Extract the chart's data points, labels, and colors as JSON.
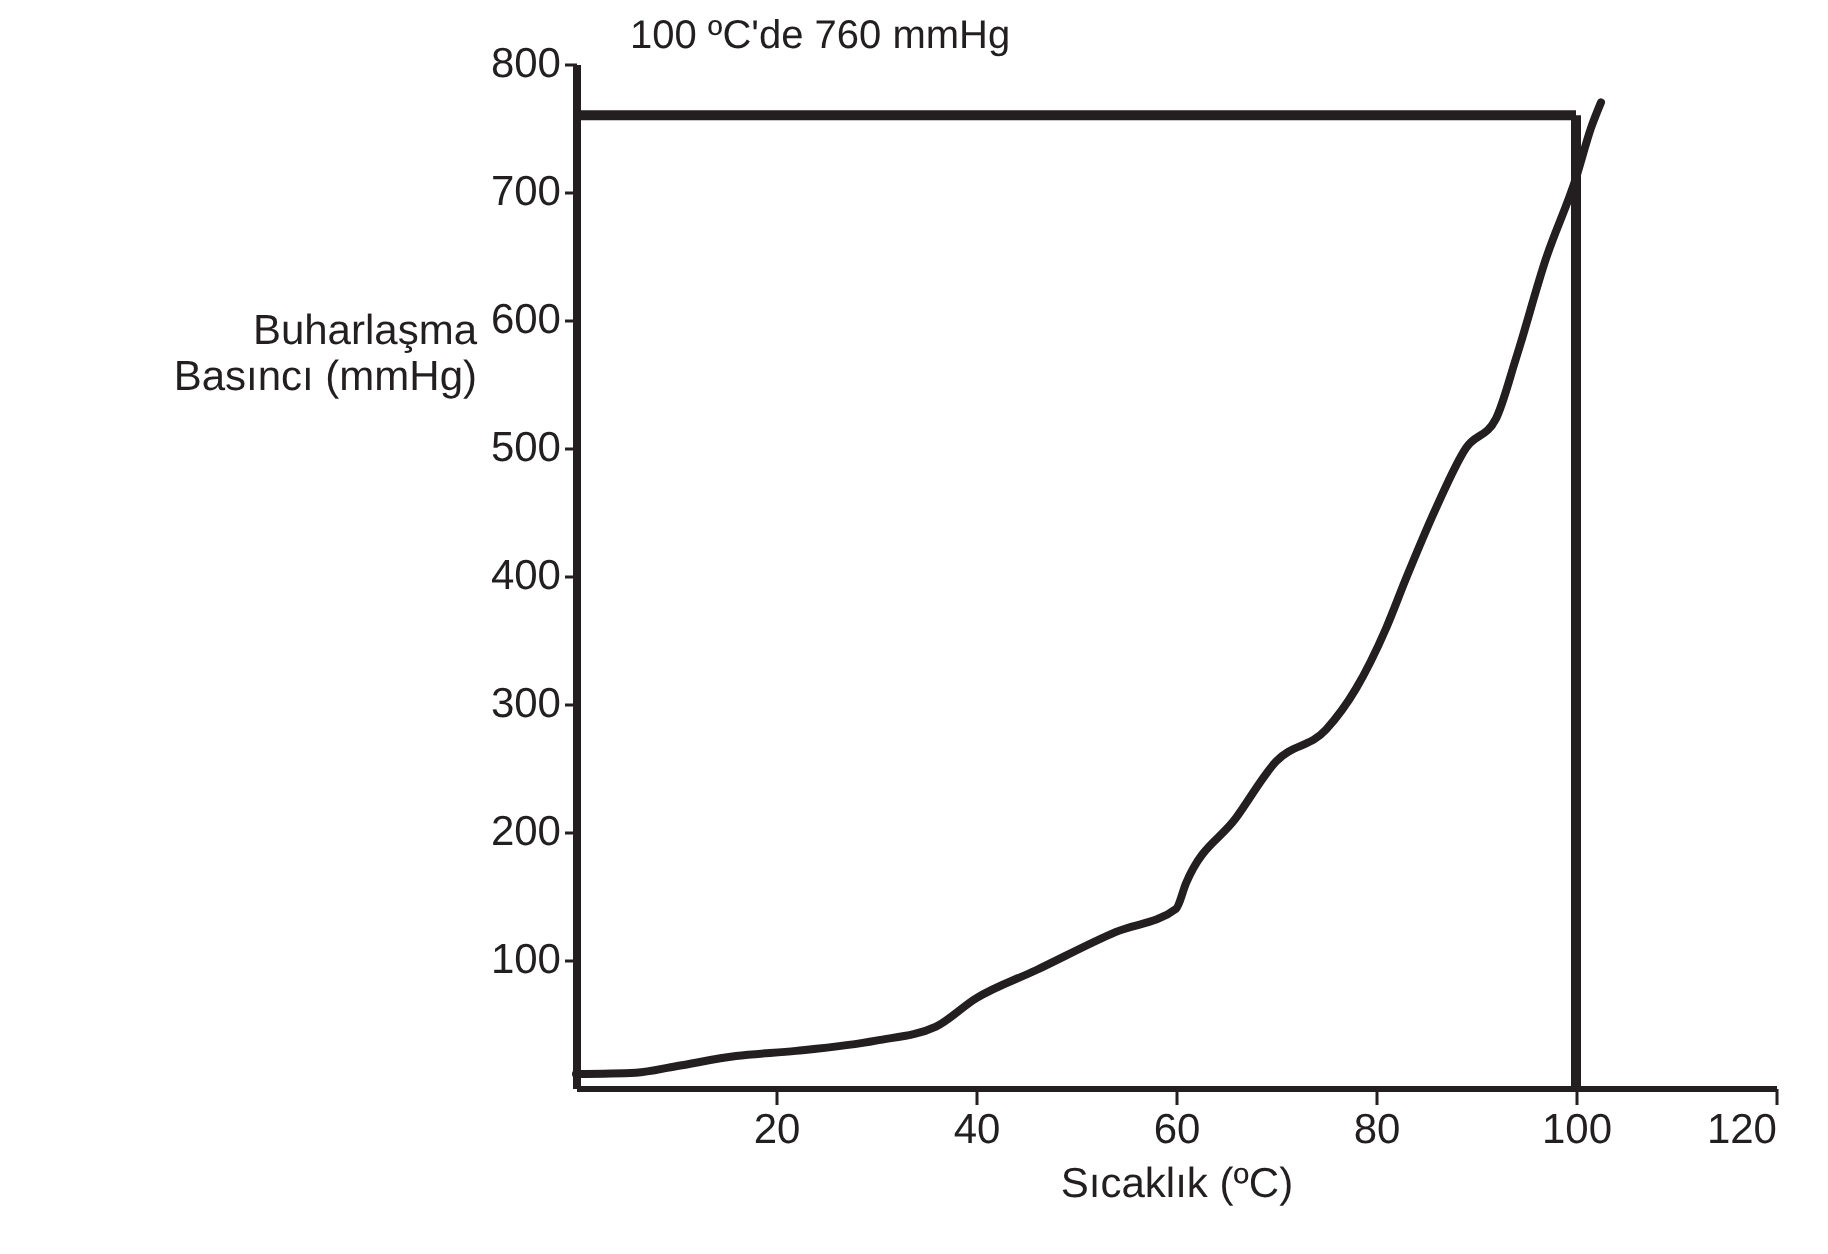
{
  "chart_data": {
    "type": "line",
    "xlabel": "Sıcaklık (ºC)",
    "ylabel": "Buharlaşma\nBasıncı (mmHg)",
    "annotations": [
      "100 ºC'de 760 mmHg"
    ],
    "x": [
      0,
      6,
      10,
      16,
      22,
      30,
      36,
      40,
      46,
      54,
      60,
      61,
      66,
      70,
      75,
      78,
      81,
      83,
      86,
      89,
      92,
      94,
      97,
      100,
      101.5,
      102.5
    ],
    "series": [
      {
        "color": "#231f20",
        "values": [
          11,
          12,
          17,
          25,
          29,
          37,
          48,
          70,
          92,
          122,
          140,
          160,
          211,
          255,
          280,
          312,
          359,
          398,
          453,
          500,
          523,
          570,
          648,
          711,
          750,
          770
        ]
      }
    ],
    "xlim": [
      0,
      120
    ],
    "xticks": [
      20,
      40,
      60,
      80,
      100,
      120
    ],
    "ylim": [
      0,
      800
    ],
    "yticks": [
      100,
      200,
      300,
      400,
      500,
      600,
      700,
      800
    ],
    "ref_lines": [
      {
        "axis": "y",
        "value": 760,
        "color": "#231f20"
      },
      {
        "axis": "x",
        "value": 100,
        "color": "#231f20"
      }
    ],
    "grid": false,
    "marker": "none",
    "line_style": "solid"
  }
}
